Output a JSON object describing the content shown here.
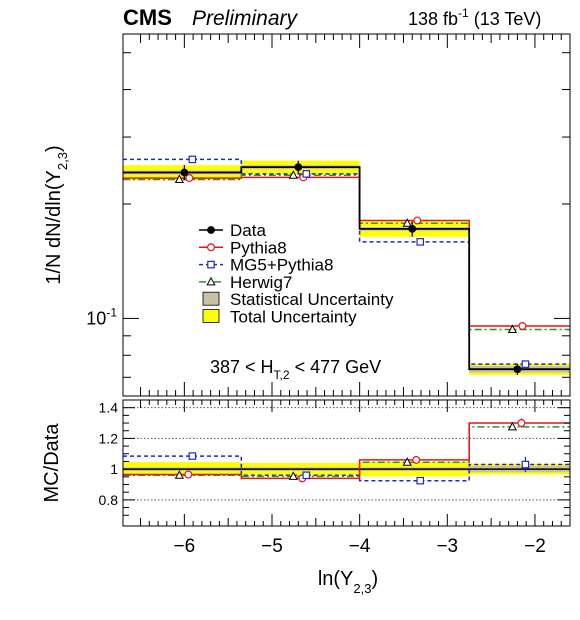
{
  "header": {
    "experiment": "CMS",
    "status": "Preliminary",
    "lumi": "138 fb",
    "lumi_exp": "-1",
    "energy": " (13 TeV)"
  },
  "cut_label": {
    "pre": "387 < H",
    "sub": "T,2",
    "post": " < 477 GeV"
  },
  "colors": {
    "data": "#000000",
    "pythia8": "#e8141e",
    "mg5": "#1e28d2",
    "herwig7": "#289628",
    "stat": "#c9c0a6",
    "total": "#ffff00"
  },
  "legend": {
    "placement": "center",
    "entries": [
      {
        "key": "data",
        "label": "Data"
      },
      {
        "key": "pythia8",
        "label": "Pythia8"
      },
      {
        "key": "mg5",
        "label": "MG5+Pythia8"
      },
      {
        "key": "herwig7",
        "label": "Herwig7"
      },
      {
        "key": "stat",
        "label": "Statistical Uncertainty"
      },
      {
        "key": "total",
        "label": "Total Uncertainty"
      }
    ]
  },
  "chart_data": [
    {
      "type": "line",
      "panel": "top",
      "ylabel": {
        "pre": "1/N dN/dln(Y",
        "sub": "2,3",
        "post": ")"
      },
      "yscale": "log",
      "ylim": [
        0.0625,
        0.56
      ],
      "xlim": [
        -6.7,
        -1.6
      ],
      "xticks": [
        -6,
        -5,
        -4,
        -3,
        -2
      ],
      "yticks": [
        {
          "value": 0.1,
          "label": "10",
          "exp": "-1"
        }
      ],
      "bin_edges": [
        -6.7,
        -5.35,
        -4.0,
        -2.75,
        -1.6
      ],
      "bin_centers": [
        -6.0,
        -4.7,
        -3.4,
        -2.2
      ],
      "series": [
        {
          "key": "data",
          "name": "Data",
          "values": [
            0.242,
            0.25,
            0.172,
            0.0735
          ],
          "stat_unc": [
            0.003,
            0.003,
            0.002,
            0.0015
          ],
          "total_unc": [
            0.011,
            0.01,
            0.008,
            0.0025
          ],
          "marker": "filled-circle",
          "line": "solid"
        },
        {
          "key": "pythia8",
          "name": "Pythia8",
          "values": [
            0.234,
            0.235,
            0.181,
            0.0955
          ],
          "marker": "open-circle",
          "line": "solid"
        },
        {
          "key": "mg5",
          "name": "MG5+Pythia8",
          "values": [
            0.262,
            0.24,
            0.159,
            0.0758
          ],
          "marker": "open-square",
          "line": "dashed"
        },
        {
          "key": "herwig7",
          "name": "Herwig7",
          "values": [
            0.232,
            0.238,
            0.178,
            0.0935
          ],
          "marker": "open-triangle",
          "line": "dash-dot"
        }
      ]
    },
    {
      "type": "line",
      "panel": "bottom",
      "xlabel": {
        "pre": "ln(Y",
        "sub": "2,3",
        "post": ")"
      },
      "ylabel": "MC/Data",
      "ylim": [
        0.63,
        1.45
      ],
      "xlim": [
        -6.7,
        -1.6
      ],
      "xticks": [
        -6,
        -5,
        -4,
        -3,
        -2
      ],
      "yticks": [
        0.8,
        1,
        1.2,
        1.4
      ],
      "ytick_labels": [
        "0.8",
        "1",
        "1.2",
        "1.4"
      ],
      "reference_lines": [
        0.8,
        1.2,
        1.4
      ],
      "bin_edges": [
        -6.7,
        -5.35,
        -4.0,
        -2.75,
        -1.6
      ],
      "bin_centers": [
        -6.0,
        -4.7,
        -3.4,
        -2.2
      ],
      "band": {
        "stat": [
          0.012,
          0.012,
          0.012,
          0.02
        ],
        "total": [
          0.045,
          0.04,
          0.046,
          0.035
        ]
      },
      "series": [
        {
          "key": "pythia8",
          "name": "Pythia8",
          "values": [
            0.965,
            0.94,
            1.06,
            1.3
          ],
          "errors": [
            0.005,
            0.005,
            0.01,
            0.03
          ]
        },
        {
          "key": "mg5",
          "name": "MG5+Pythia8",
          "values": [
            1.085,
            0.96,
            0.925,
            1.03
          ],
          "errors": [
            0.005,
            0.005,
            0.005,
            0.05
          ]
        },
        {
          "key": "herwig7",
          "name": "Herwig7",
          "values": [
            0.96,
            0.953,
            1.045,
            1.275
          ],
          "errors": [
            0.005,
            0.005,
            0.01,
            0.02
          ]
        }
      ]
    }
  ]
}
